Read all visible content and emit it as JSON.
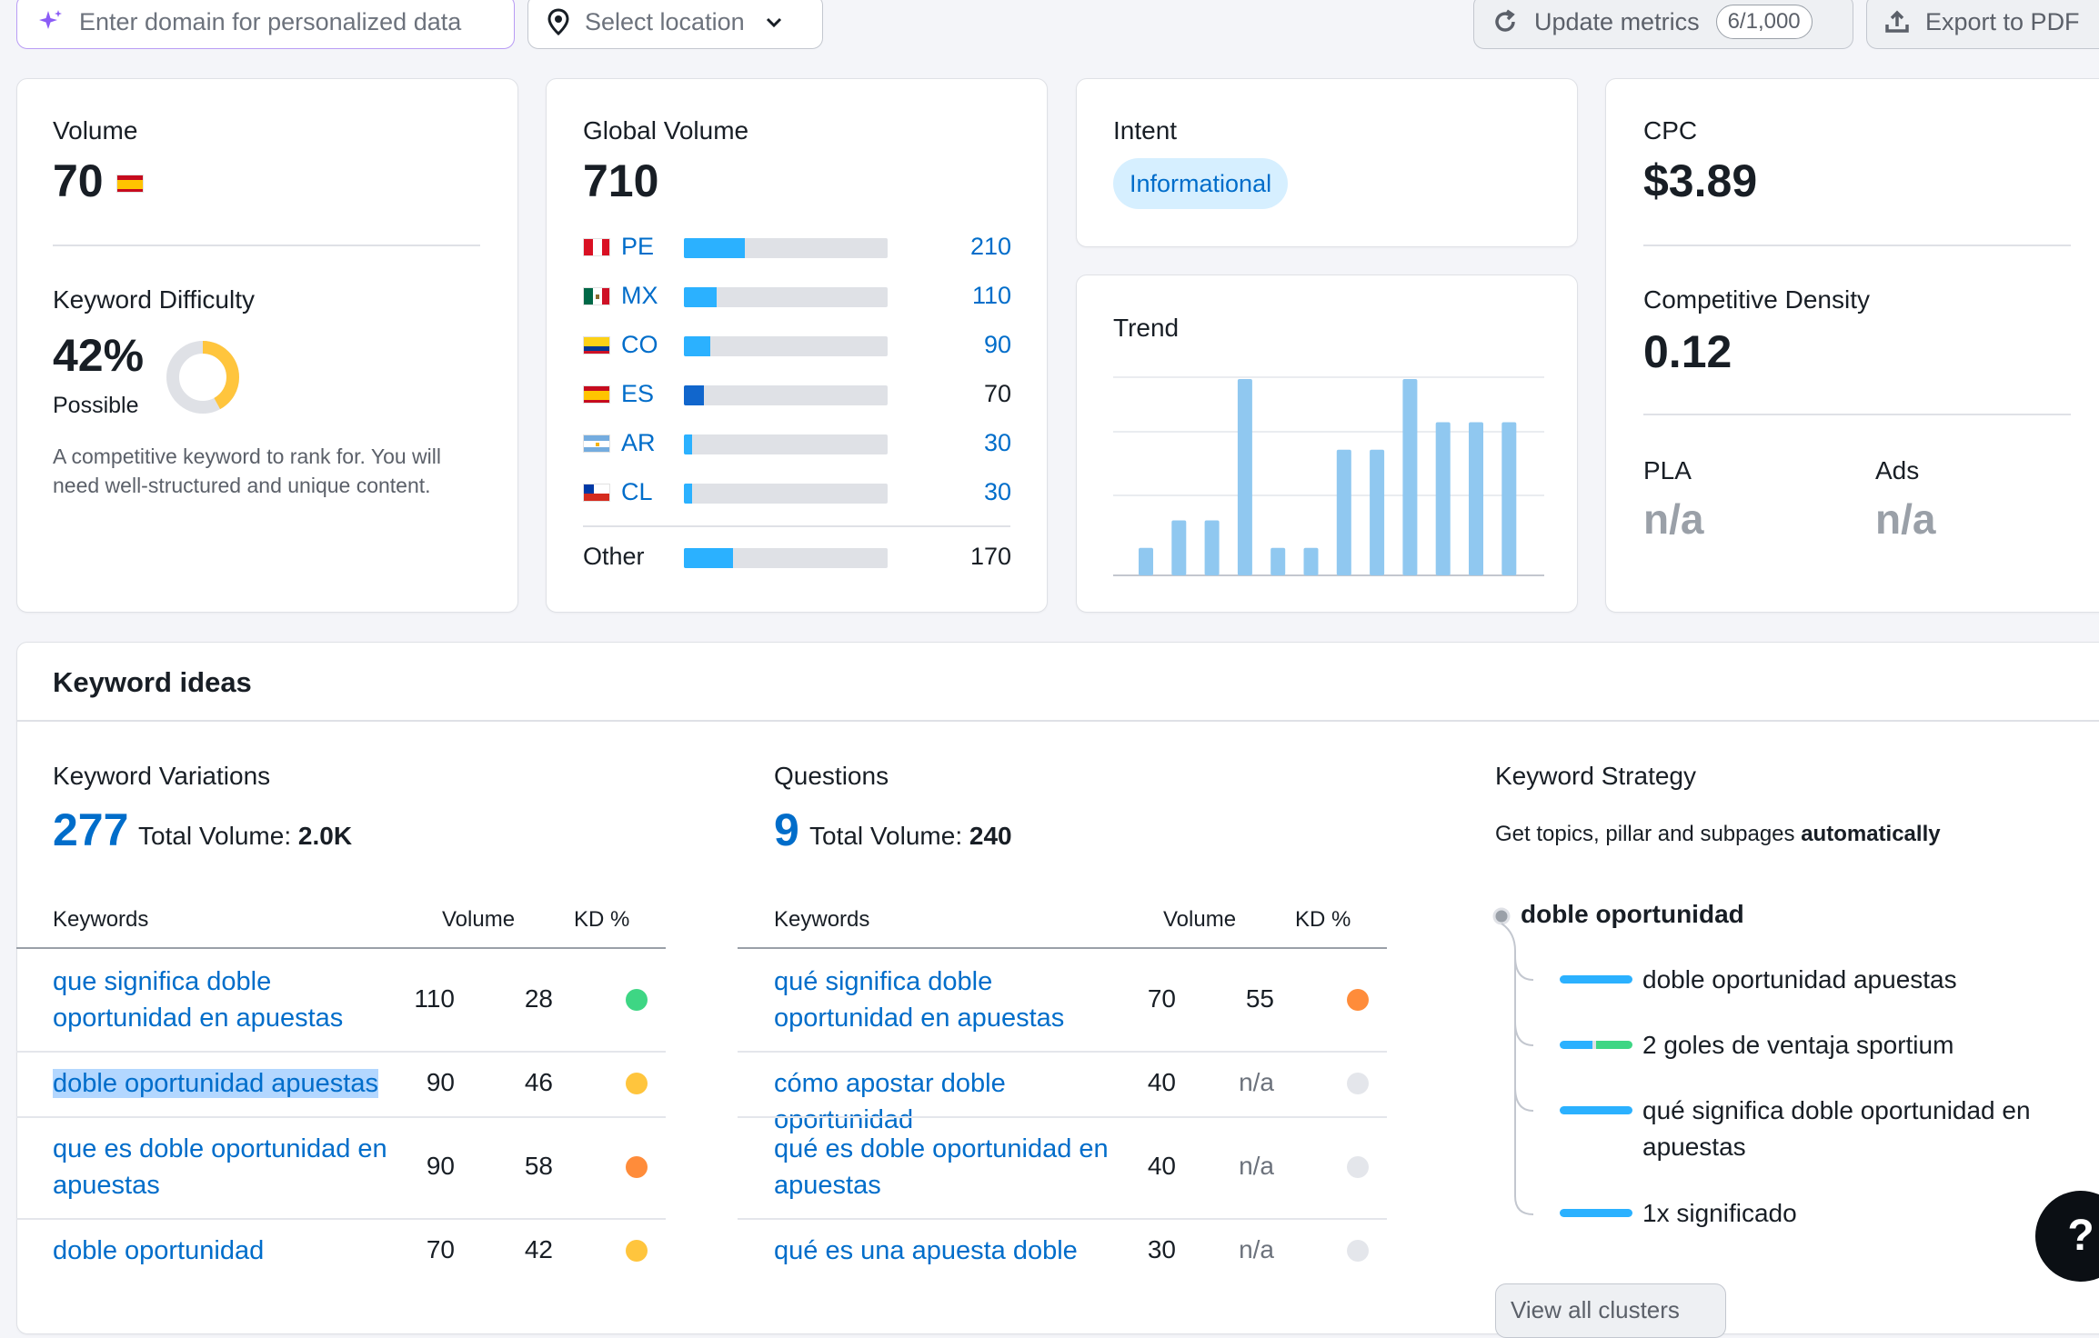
{
  "toolbar": {
    "domain_placeholder": "Enter domain for personalized data",
    "location_label": "Select location",
    "update_label": "Update metrics",
    "update_count": "6/1,000",
    "export_label": "Export to PDF"
  },
  "volume": {
    "label": "Volume",
    "value": "70",
    "kd_label": "Keyword Difficulty",
    "kd_value": "42%",
    "kd_percent": 42,
    "kd_level": "Possible",
    "kd_desc": "A competitive keyword to rank for. You will need well-structured and unique content."
  },
  "global": {
    "label": "Global Volume",
    "value": "710",
    "countries": [
      {
        "code": "PE",
        "value": "210",
        "fraction": 0.3,
        "flag": "pe"
      },
      {
        "code": "MX",
        "value": "110",
        "fraction": 0.16,
        "flag": "mx"
      },
      {
        "code": "CO",
        "value": "90",
        "fraction": 0.13,
        "flag": "co"
      },
      {
        "code": "ES",
        "value": "70",
        "fraction": 0.1,
        "flag": "es"
      },
      {
        "code": "AR",
        "value": "30",
        "fraction": 0.04,
        "flag": "ar"
      },
      {
        "code": "CL",
        "value": "30",
        "fraction": 0.04,
        "flag": "cl"
      }
    ],
    "other_label": "Other",
    "other_value": "170",
    "other_fraction": 0.24
  },
  "intent": {
    "label": "Intent",
    "badge": "Informational"
  },
  "trend": {
    "label": "Trend",
    "values": [
      0.14,
      0.28,
      0.28,
      1.0,
      0.14,
      0.14,
      0.64,
      0.64,
      1.0,
      0.78,
      0.78,
      0.78
    ]
  },
  "cpc": {
    "label": "CPC",
    "value": "$3.89",
    "density_label": "Competitive Density",
    "density_value": "0.12",
    "pla_label": "PLA",
    "pla_value": "n/a",
    "ads_label": "Ads",
    "ads_value": "n/a"
  },
  "ideas": {
    "title": "Keyword ideas",
    "variations": {
      "label": "Keyword Variations",
      "count": "277",
      "total_label": "Total Volume:",
      "total_value": "2.0K",
      "col_keywords": "Keywords",
      "col_volume": "Volume",
      "col_kd": "KD %",
      "rows": [
        {
          "kw": "que significa doble oportunidad en apuestas",
          "vol": "110",
          "kd": "28",
          "color": "#3ed684"
        },
        {
          "kw": "doble oportunidad apuestas",
          "vol": "90",
          "kd": "46",
          "color": "#ffc53d"
        },
        {
          "kw": "que es doble oportunidad en apuestas",
          "vol": "90",
          "kd": "58",
          "color": "#ff8c3a"
        },
        {
          "kw": "doble oportunidad",
          "vol": "70",
          "kd": "42",
          "color": "#ffc53d"
        }
      ]
    },
    "questions": {
      "label": "Questions",
      "count": "9",
      "total_label": "Total Volume:",
      "total_value": "240",
      "col_keywords": "Keywords",
      "col_volume": "Volume",
      "col_kd": "KD %",
      "rows": [
        {
          "kw": "qué significa doble oportunidad en apuestas",
          "vol": "70",
          "kd": "55",
          "color": "#ff8c3a"
        },
        {
          "kw": "cómo apostar doble oportunidad",
          "vol": "40",
          "kd": "n/a",
          "color": "#e4e6eb"
        },
        {
          "kw": "qué es doble oportunidad en apuestas",
          "vol": "40",
          "kd": "n/a",
          "color": "#e4e6eb"
        },
        {
          "kw": "qué es una apuesta doble",
          "vol": "30",
          "kd": "n/a",
          "color": "#e4e6eb"
        }
      ]
    },
    "strategy": {
      "label": "Keyword Strategy",
      "desc": "Get topics, pillar and subpages",
      "desc_bold": "automatically",
      "root": "doble oportunidad",
      "items": [
        "doble oportunidad apuestas",
        "2 goles de ventaja sportium",
        "qué significa doble oportunidad en apuestas",
        "1x significado"
      ],
      "button": "View all clusters"
    }
  },
  "help_label": "?"
}
